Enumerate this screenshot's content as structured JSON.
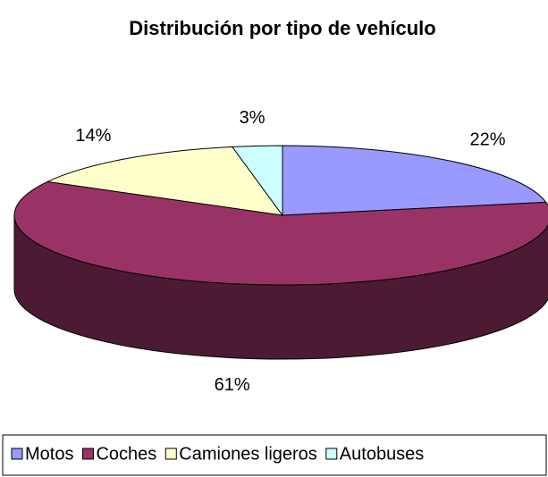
{
  "chart_data": {
    "type": "pie3d",
    "title": "Distribución por tipo de vehículo",
    "categories": [
      "Motos",
      "Coches",
      "Camiones ligeros",
      "Autobuses"
    ],
    "values": [
      22,
      61,
      14,
      3
    ],
    "value_labels": [
      "22%",
      "61%",
      "14%",
      "3%"
    ],
    "colors": [
      "#9999ff",
      "#993366",
      "#ffffcc",
      "#ccffff"
    ],
    "legend": "bottom"
  }
}
